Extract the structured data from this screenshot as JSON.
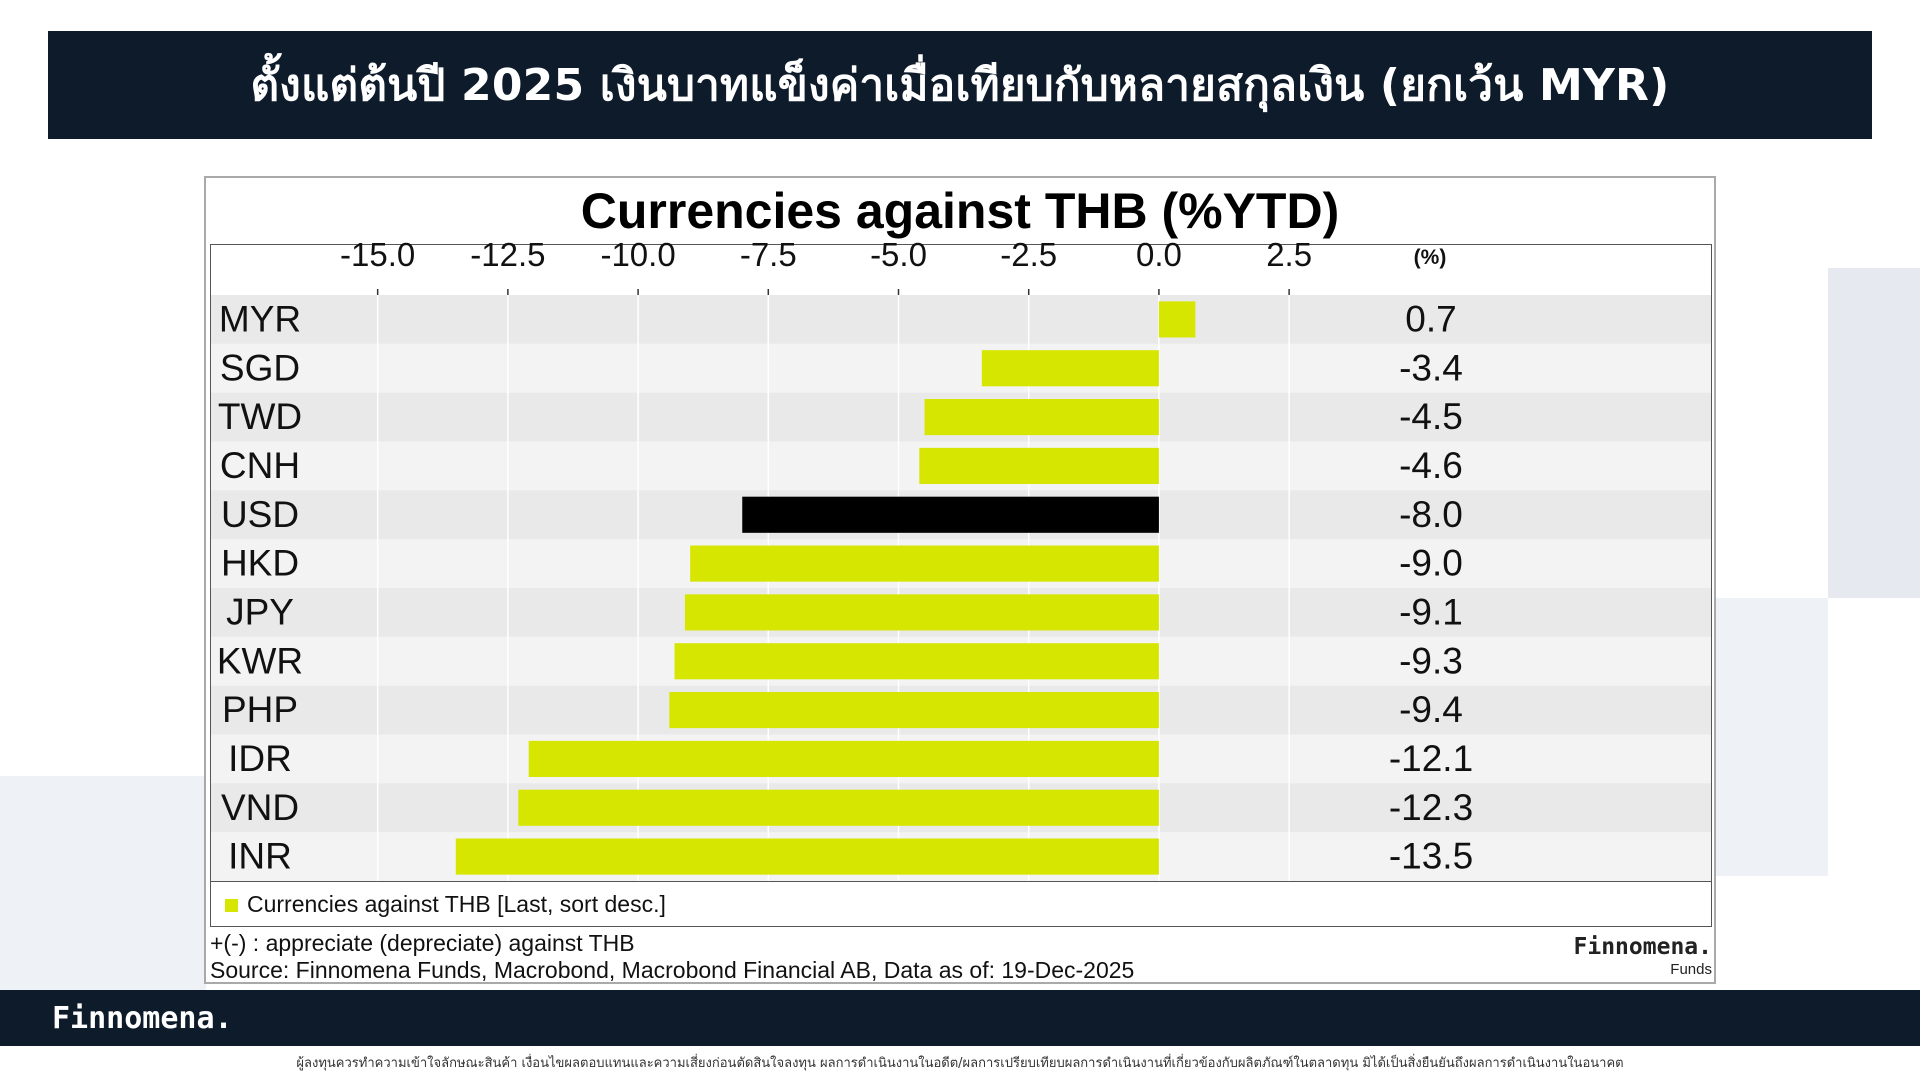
{
  "header": {
    "title": "ตั้งแต่ต้นปี 2025 เงินบาทแข็งค่าเมื่อเทียบกับหลายสกุลเงิน (ยกเว้น MYR)"
  },
  "chart_data": {
    "type": "bar",
    "orientation": "horizontal",
    "title": "Currencies against THB (%YTD)",
    "unit_label": "(%)",
    "categories": [
      "MYR",
      "SGD",
      "TWD",
      "CNH",
      "USD",
      "HKD",
      "JPY",
      "KWR",
      "PHP",
      "IDR",
      "VND",
      "INR"
    ],
    "values": [
      0.7,
      -3.4,
      -4.5,
      -4.6,
      -8.0,
      -9.0,
      -9.1,
      -9.3,
      -9.4,
      -12.1,
      -12.3,
      -13.5
    ],
    "value_labels": [
      "0.7",
      "-3.4",
      "-4.5",
      "-4.6",
      "-8.0",
      "-9.0",
      "-9.1",
      "-9.3",
      "-9.4",
      "-12.1",
      "-12.3",
      "-13.5"
    ],
    "x_ticks": [
      "-15.0",
      "-12.5",
      "-10.0",
      "-7.5",
      "-5.0",
      "-2.5",
      "0.0",
      "2.5"
    ],
    "x_tick_values": [
      -15.0,
      -12.5,
      -10.0,
      -7.5,
      -5.0,
      -2.5,
      0.0,
      2.5
    ],
    "xlim": [
      -18.2,
      10.6
    ],
    "highlight_category": "USD",
    "colors": {
      "bar": "#d6e600",
      "highlight": "#000000",
      "grid": "#ffffff"
    },
    "grid": true,
    "legend": {
      "label": "Currencies against THB [Last, sort desc.]",
      "position": "bottom"
    }
  },
  "notes": {
    "line1": "+(-) : appreciate (depreciate) against THB",
    "line2": "Source: Finnomena Funds, Macrobond, Macrobond Financial AB, Data as of: 19-Dec-2025"
  },
  "chart_brand": {
    "name": "Finnomena.",
    "sub": "Funds"
  },
  "footer": {
    "brand": "Finnomena.",
    "disclaimer": "ผู้ลงทุนควรทำความเข้าใจลักษณะสินค้า เงื่อนไขผลตอบแทนและความเสี่ยงก่อนตัดสินใจลงทุน ผลการดำเนินงานในอดีต/ผลการเปรียบเทียบผลการดำเนินงานที่เกี่ยวข้องกับผลิตภัณฑ์ในตลาดทุน มิได้เป็นสิ่งยืนยันถึงผลการดำเนินงานในอนาคต"
  }
}
